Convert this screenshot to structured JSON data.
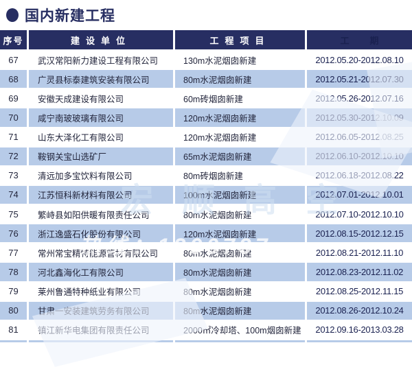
{
  "page": {
    "title": "国内新建工程"
  },
  "icons": {
    "bullet": "circle-bullet"
  },
  "colors": {
    "navy": "#272e62",
    "row_blue": "#b7cbe8",
    "text": "#23263c",
    "date_text": "#1a2150"
  },
  "table": {
    "columns": [
      "序号",
      "建设单位",
      "工程项目",
      "工期"
    ],
    "rows": [
      {
        "no": "67",
        "company": "武汉常阳新力建设工程有限公司",
        "project": "130m水泥烟囱新建",
        "period": "2012.05.20-2012.08.10"
      },
      {
        "no": "68",
        "company": "广灵县标泰建筑安装有限公司",
        "project": "80m水泥烟囱新建",
        "period": "2012.05.21-2012.07.30"
      },
      {
        "no": "69",
        "company": "安徽天成建设有限公司",
        "project": "60m砖烟囱新建",
        "period": "2012.05.26-2012.07.16"
      },
      {
        "no": "70",
        "company": "咸宁南玻玻璃有限公司",
        "project": "120m水泥烟囱新建",
        "period": "2012.05.30-2012.10.09"
      },
      {
        "no": "71",
        "company": "山东大泽化工有限公司",
        "project": "120m水泥烟囱新建",
        "period": "2012.06.05-2012.08.25"
      },
      {
        "no": "72",
        "company": "鞍钢关宝山选矿厂",
        "project": "65m水泥烟囱新建",
        "period": "2012.06.10-2012.10.10"
      },
      {
        "no": "73",
        "company": "清远加多宝饮料有限公司",
        "project": "80m砖烟囱新建",
        "period": "2012.06.18-2012.08.22"
      },
      {
        "no": "74",
        "company": "江苏恒科新材料有限公司",
        "project": "100m水泥烟囱新建",
        "period": "2012.07.01-2012.10.01"
      },
      {
        "no": "75",
        "company": "繁峙县如阳供暖有限责任公司",
        "project": "80m水泥烟囱新建",
        "period": "2012.07.10-2012.10.10"
      },
      {
        "no": "76",
        "company": "浙江逸盛石化股份有限公司",
        "project": "120m水泥烟囱新建",
        "period": "2012.08.15-2012.12.15"
      },
      {
        "no": "77",
        "company": "常州常宝精特能源管材有限公司",
        "project": "80m水泥烟囱新建",
        "period": "2012.08.21-2012.11.10"
      },
      {
        "no": "78",
        "company": "河北鑫海化工有限公司",
        "project": "80m水泥烟囱新建",
        "period": "2012.08.23-2012.11.02"
      },
      {
        "no": "79",
        "company": "莱州鲁通特种纸业有限公司",
        "project": "80m水泥烟囱新建",
        "period": "2012.08.25-2012.11.15"
      },
      {
        "no": "80",
        "company": "甘肃一安装建筑劳务有限公司",
        "project": "80m水泥烟囱新建",
        "period": "2012.08.26-2012.10.24"
      },
      {
        "no": "81",
        "company": "镇江新华电集团有限责任公司",
        "project": "2000㎡冷却塔、100m烟囱新建",
        "period": "2012.09.16-2013.03.28"
      }
    ]
  },
  "watermark": {
    "brand": "宏顺高空",
    "hotline": "热线：1390737"
  }
}
